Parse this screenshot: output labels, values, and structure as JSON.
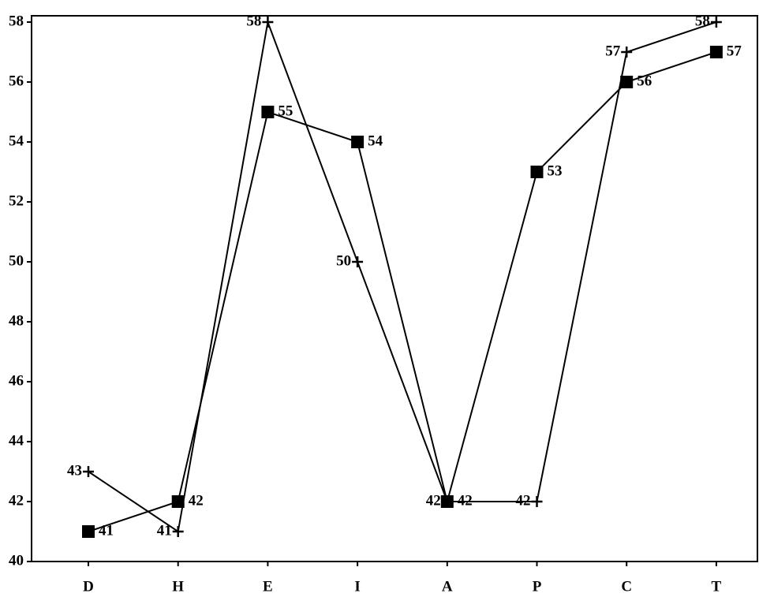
{
  "chart_data": {
    "type": "line",
    "categories": [
      "D",
      "H",
      "E",
      "I",
      "A",
      "P",
      "C",
      "T"
    ],
    "series": [
      {
        "color": "#000000",
        "marker": "square",
        "values": [
          41,
          42,
          55,
          54,
          42,
          53,
          56,
          57
        ]
      },
      {
        "color": "#000000",
        "marker": "plus",
        "values": [
          43,
          41,
          58,
          50,
          42,
          42,
          57,
          58
        ]
      }
    ],
    "ylim": [
      40,
      58
    ],
    "yticks": [
      40,
      42,
      44,
      46,
      48,
      50,
      52,
      54,
      56,
      58
    ],
    "grid": false
  }
}
